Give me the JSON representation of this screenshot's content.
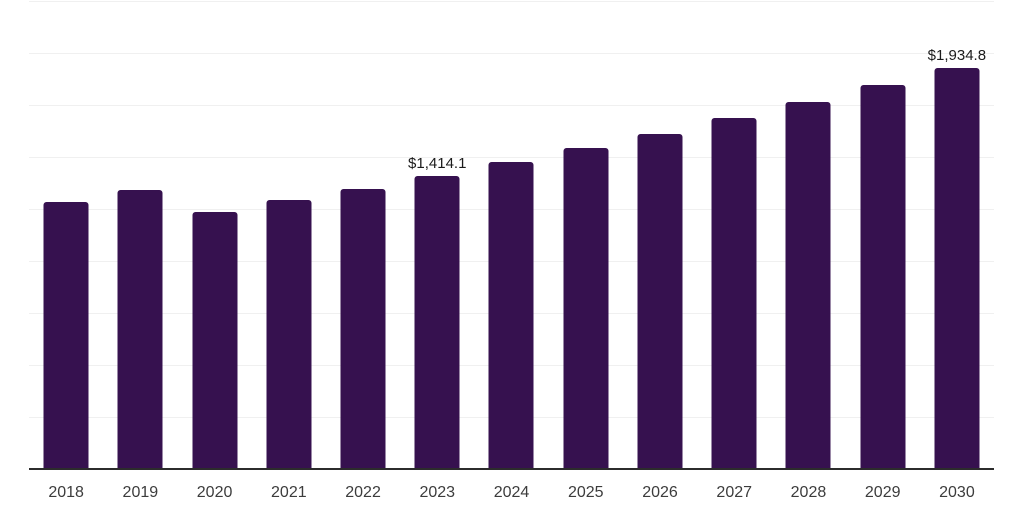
{
  "chart": {
    "background_color": "#ffffff",
    "bar_color": "#36114F",
    "gridline_color": "#f0f0f0",
    "axis_color": "#2c2c2c",
    "tick_label_color": "#3c3c3c",
    "value_label_color": "#1b1b1b"
  },
  "chart_data": {
    "type": "bar",
    "title": "",
    "xlabel": "",
    "ylabel": "",
    "categories": [
      "2018",
      "2019",
      "2020",
      "2021",
      "2022",
      "2023",
      "2024",
      "2025",
      "2026",
      "2027",
      "2028",
      "2029",
      "2030"
    ],
    "values": [
      1287.3,
      1346.9,
      1242.6,
      1298.8,
      1350.9,
      1414.1,
      1478.9,
      1546.7,
      1617.5,
      1691.7,
      1769.2,
      1850.3,
      1934.8
    ],
    "data_labels": {
      "2023": "$1,414.1",
      "2030": "$1,934.8"
    },
    "ylim": [
      0,
      2250
    ],
    "gridline_step": 250,
    "grid": true,
    "legend": false,
    "y_axis_tick_labels_visible": false
  }
}
